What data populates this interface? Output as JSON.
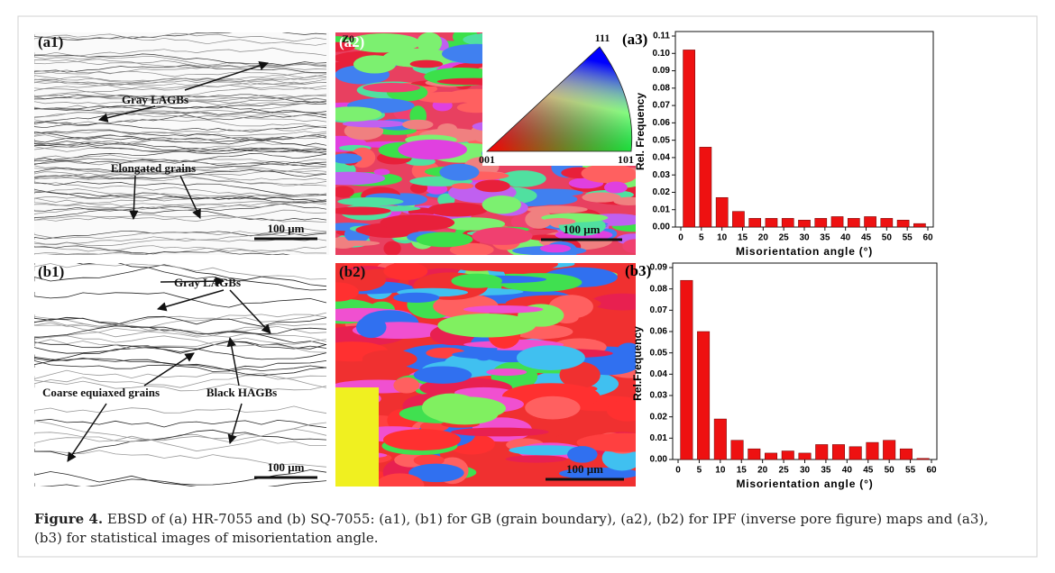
{
  "panels": [
    {
      "label": "(a1)",
      "annotations": [
        "Gray LAGBs",
        "Elongated grains"
      ],
      "scale_bar": "100 μm"
    },
    {
      "label": "(a2)",
      "annotations": [
        "Z0",
        "111",
        "001",
        "101"
      ],
      "scale_bar": "100 μm"
    },
    {
      "label": "(b1)",
      "annotations": [
        "Gray LAGBs",
        "Coarse equiaxed grains",
        "Black HAGBs"
      ],
      "scale_bar": "100 μm"
    },
    {
      "label": "(b2)",
      "scale_bar": "100 μm"
    }
  ],
  "chart_data": [
    {
      "type": "bar",
      "label": "(a3)",
      "xlabel": "Misorientation angle (°)",
      "ylabel": "Rel. Frequency",
      "color": "#ee1111",
      "x": [
        2,
        6,
        10,
        14,
        18,
        22,
        26,
        30,
        34,
        38,
        42,
        46,
        50,
        54,
        58
      ],
      "values": [
        0.102,
        0.046,
        0.017,
        0.009,
        0.005,
        0.005,
        0.005,
        0.004,
        0.005,
        0.006,
        0.005,
        0.006,
        0.005,
        0.004,
        0.002
      ],
      "xlim": [
        0,
        60
      ],
      "xticks": [
        0,
        5,
        10,
        15,
        20,
        25,
        30,
        35,
        40,
        45,
        50,
        55,
        60
      ],
      "ylim": [
        0,
        0.11
      ],
      "yticks": [
        {
          "value": 0,
          "label": "0.00"
        },
        {
          "value": 0.01,
          "label": "0.01"
        },
        {
          "value": 0.02,
          "label": "0.02"
        },
        {
          "value": 0.03,
          "label": "0.03"
        },
        {
          "value": 0.04,
          "label": "0.04"
        },
        {
          "value": 0.05,
          "label": "0.05"
        },
        {
          "value": 0.06,
          "label": "0.06"
        },
        {
          "value": 0.07,
          "label": "0.07"
        },
        {
          "value": 0.08,
          "label": "0.08"
        },
        {
          "value": 0.09,
          "label": "0.09"
        },
        {
          "value": 0.1,
          "label": "0.10"
        },
        {
          "value": 0.11,
          "label": "0.11"
        }
      ]
    },
    {
      "type": "bar",
      "label": "(b3)",
      "xlabel": "Misorientation angle (°)",
      "ylabel": "Rel.Frequency",
      "color": "#ee1111",
      "x": [
        2,
        6,
        10,
        14,
        18,
        22,
        26,
        30,
        34,
        38,
        42,
        46,
        50,
        54,
        58
      ],
      "values": [
        0.084,
        0.06,
        0.019,
        0.009,
        0.005,
        0.003,
        0.004,
        0.003,
        0.007,
        0.007,
        0.006,
        0.008,
        0.009,
        0.005,
        0.0005
      ],
      "xlim": [
        0,
        60
      ],
      "xticks": [
        0,
        5,
        10,
        15,
        20,
        25,
        30,
        35,
        40,
        45,
        50,
        55,
        60
      ],
      "ylim": [
        0,
        0.09
      ],
      "yticks": [
        {
          "value": 0,
          "label": "0.00"
        },
        {
          "value": 0.01,
          "label": "0.01"
        },
        {
          "value": 0.02,
          "label": "0.02"
        },
        {
          "value": 0.03,
          "label": "0.03"
        },
        {
          "value": 0.04,
          "label": "0.04"
        },
        {
          "value": 0.05,
          "label": "0.05"
        },
        {
          "value": 0.06,
          "label": "0.06"
        },
        {
          "value": 0.07,
          "label": "0.07"
        },
        {
          "value": 0.08,
          "label": "0.08"
        },
        {
          "value": 0.09,
          "label": "0.09"
        }
      ]
    }
  ],
  "caption": {
    "label": "Figure 4.",
    "text": "EBSD of (a) HR-7055 and (b) SQ-7055: (a1), (b1) for GB (grain boundary), (a2), (b2) for IPF (inverse pore figure) maps and (a3), (b3) for statistical images of misorientation angle."
  }
}
